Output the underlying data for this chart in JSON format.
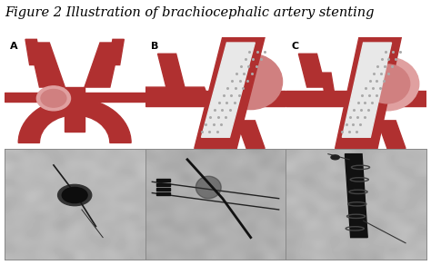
{
  "title": "Figure 2 Illustration of brachiocephalic artery stenting",
  "title_fontsize": 10.5,
  "title_style": "italic",
  "title_color": "#000000",
  "title_font": "DejaVu Serif",
  "labels": [
    "A",
    "B",
    "C"
  ],
  "label_fontsize": 8,
  "label_fontweight": "bold",
  "label_color": "#000000",
  "border_color": "#888888",
  "background_color": "#ffffff",
  "fig_width": 4.74,
  "fig_height": 2.92,
  "artery_color": "#b03030",
  "artery_dark": "#8B1010",
  "stent_color": "#e8e8e8",
  "stent_dot_color": "#aaaaaa",
  "aneurysm_light": "#d08080",
  "aneurysm_lighter": "#e0a0a0",
  "bg_illus": "#f0f0f0"
}
